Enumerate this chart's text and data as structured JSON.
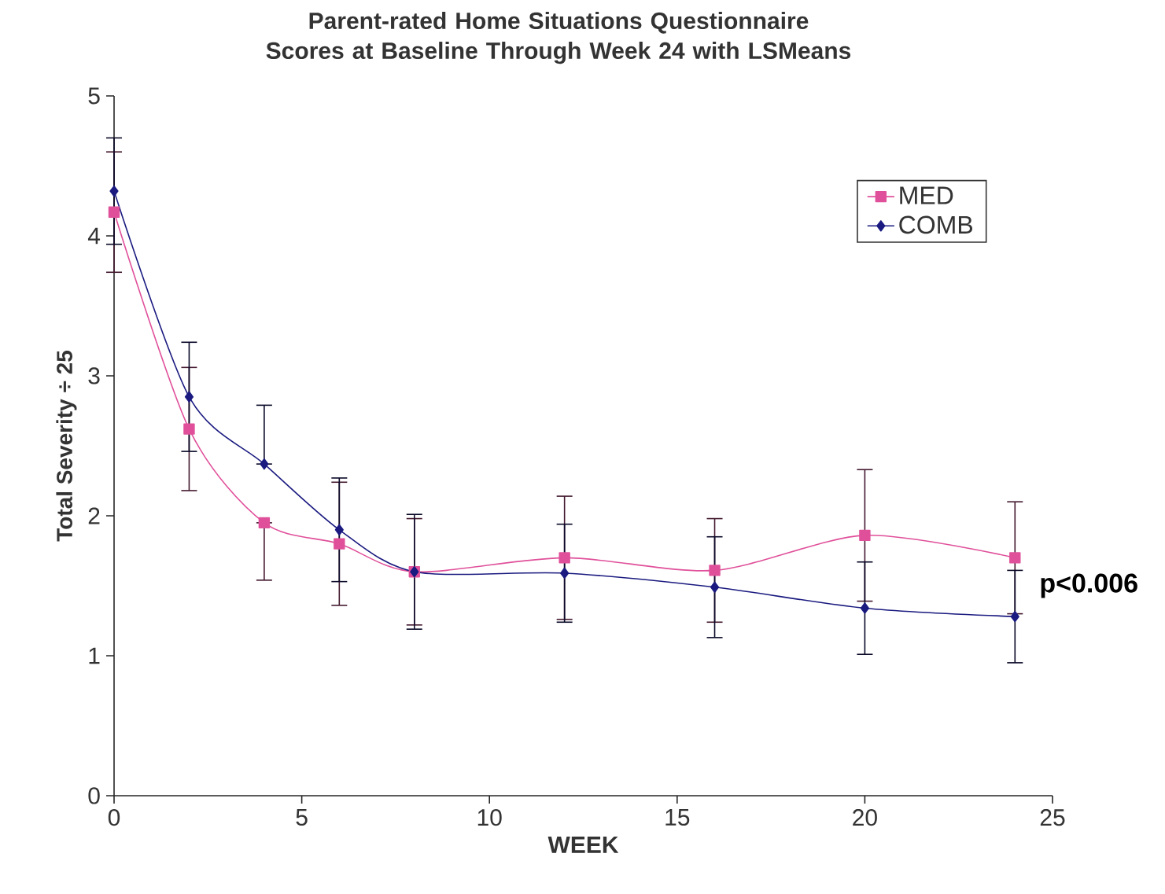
{
  "chart_data": {
    "type": "line",
    "title": "Parent-rated Home Situations Questionnaire Scores at Baseline Through Week 24 with LSMeans",
    "xlabel": "WEEK",
    "ylabel": "Total Severity ÷ 25",
    "x": [
      0,
      2,
      4,
      6,
      8,
      12,
      16,
      20,
      24
    ],
    "series": [
      {
        "name": "MED",
        "color": "#e0509a",
        "marker": "square",
        "values": [
          4.17,
          2.62,
          1.95,
          1.8,
          1.6,
          1.7,
          1.61,
          1.86,
          1.7
        ],
        "errors": [
          0.43,
          0.44,
          [
            1.54,
            1.95
          ],
          0.44,
          0.38,
          0.44,
          0.37,
          0.47,
          0.4
        ]
      },
      {
        "name": "COMB",
        "color": "#1a1a80",
        "marker": "diamond",
        "values": [
          4.32,
          2.85,
          2.37,
          1.9,
          1.6,
          1.59,
          1.49,
          1.34,
          1.28
        ],
        "errors": [
          0.38,
          0.39,
          [
            2.37,
            2.79
          ],
          0.37,
          0.41,
          0.35,
          0.36,
          0.33,
          0.33
        ]
      }
    ],
    "xlim": [
      0,
      25
    ],
    "ylim": [
      0,
      5
    ],
    "xticks": [
      0,
      5,
      10,
      15,
      20,
      25
    ],
    "yticks": [
      0,
      1,
      2,
      3,
      4,
      5
    ],
    "grid": false,
    "legend": "top right",
    "line_style": "solid",
    "annotations": [
      {
        "text": "p<0.006",
        "x": 24,
        "y": 1.5
      }
    ]
  }
}
